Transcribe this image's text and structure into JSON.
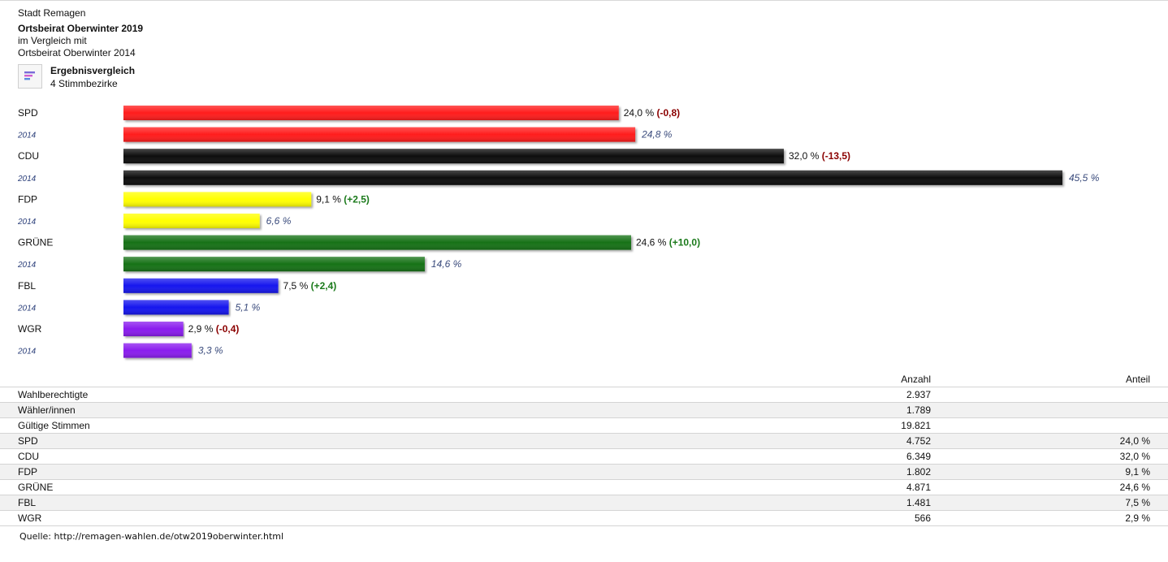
{
  "header": {
    "city": "Stadt Remagen",
    "election": "Ortsbeirat Oberwinter 2019",
    "compare_prefix": "im Vergleich mit",
    "compare_election": "Ortsbeirat Oberwinter 2014",
    "comparison_title": "Ergebnisvergleich",
    "districts": "4 Stimmbezirke"
  },
  "icon": "bar-chart-icon",
  "chart_data": {
    "type": "bar",
    "orientation": "horizontal",
    "categories": [
      "SPD",
      "CDU",
      "FDP",
      "GRÜNE",
      "FBL",
      "WGR"
    ],
    "colors": [
      "#ff1a1a",
      "#111111",
      "#ffff00",
      "#127212",
      "#1212ee",
      "#8a1eee"
    ],
    "prev_label": "2014",
    "series": [
      {
        "name": "2019",
        "values": [
          24.0,
          32.0,
          9.1,
          24.6,
          7.5,
          2.9
        ]
      },
      {
        "name": "2014",
        "values": [
          24.8,
          45.5,
          6.6,
          14.6,
          5.1,
          3.3
        ]
      }
    ],
    "labels_2019": [
      "24,0 %",
      "32,0 %",
      "9,1 %",
      "24,6 %",
      "7,5 %",
      "2,9 %"
    ],
    "labels_2014": [
      "24,8 %",
      "45,5 %",
      "6,6 %",
      "14,6 %",
      "5,1 %",
      "3,3 %"
    ],
    "diffs": [
      "(-0,8)",
      "(-13,5)",
      "(+2,5)",
      "(+10,0)",
      "(+2,4)",
      "(-0,4)"
    ],
    "diff_colors": {
      "negative": "#8b0000",
      "positive": "#1b7a1b"
    },
    "xlim": [
      0,
      45.5
    ]
  },
  "table": {
    "headers": {
      "count": "Anzahl",
      "share": "Anteil"
    },
    "rows": [
      {
        "name": "Wahlberechtigte",
        "count": "2.937",
        "share": ""
      },
      {
        "name": "Wähler/innen",
        "count": "1.789",
        "share": ""
      },
      {
        "name": "Gültige Stimmen",
        "count": "19.821",
        "share": ""
      },
      {
        "name": "SPD",
        "count": "4.752",
        "share": "24,0 %"
      },
      {
        "name": "CDU",
        "count": "6.349",
        "share": "32,0 %"
      },
      {
        "name": "FDP",
        "count": "1.802",
        "share": "9,1 %"
      },
      {
        "name": "GRÜNE",
        "count": "4.871",
        "share": "24,6 %"
      },
      {
        "name": "FBL",
        "count": "1.481",
        "share": "7,5 %"
      },
      {
        "name": "WGR",
        "count": "566",
        "share": "2,9 %"
      }
    ]
  },
  "source": "Quelle: http://remagen-wahlen.de/otw2019oberwinter.html"
}
